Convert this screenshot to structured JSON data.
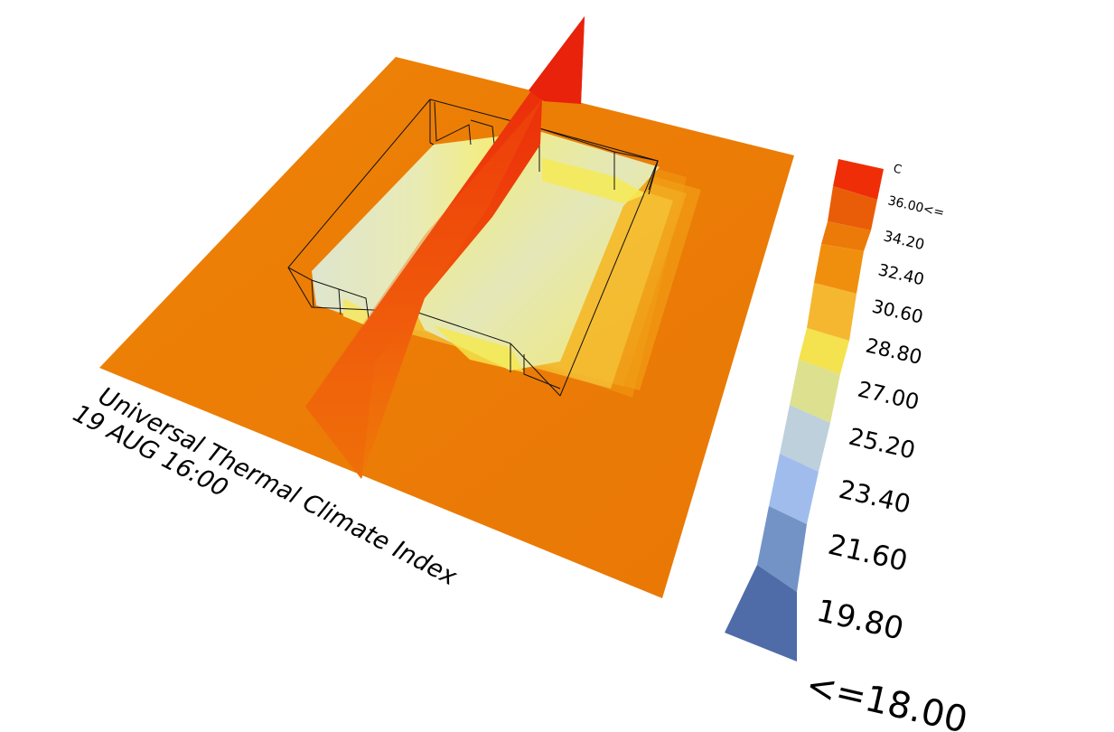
{
  "title": "Universal Thermal Climate Index",
  "subtitle": "19 AUG 16:00",
  "legend": {
    "unit": "C",
    "labels": [
      "36.00<=",
      "34.20",
      "32.40",
      "30.60",
      "28.80",
      "27.00",
      "25.20",
      "23.40",
      "21.60",
      "19.80",
      "<=18.00"
    ],
    "colors": [
      "#ef2e07",
      "#ea5d08",
      "#ec7a08",
      "#f08f0e",
      "#f5b730",
      "#f4e24e",
      "#dde08e",
      "#bdd0dc",
      "#9fbcec",
      "#7393c6",
      "#4f6ca9"
    ]
  },
  "colors": {
    "ground": "#ed7e06",
    "ground_dark": "#e97805",
    "interior_light": "#d7e2cf",
    "interior_warm": "#f3e870",
    "section_plane": "#f0560c",
    "section_top": "#e8260a",
    "outline": "#111111"
  }
}
